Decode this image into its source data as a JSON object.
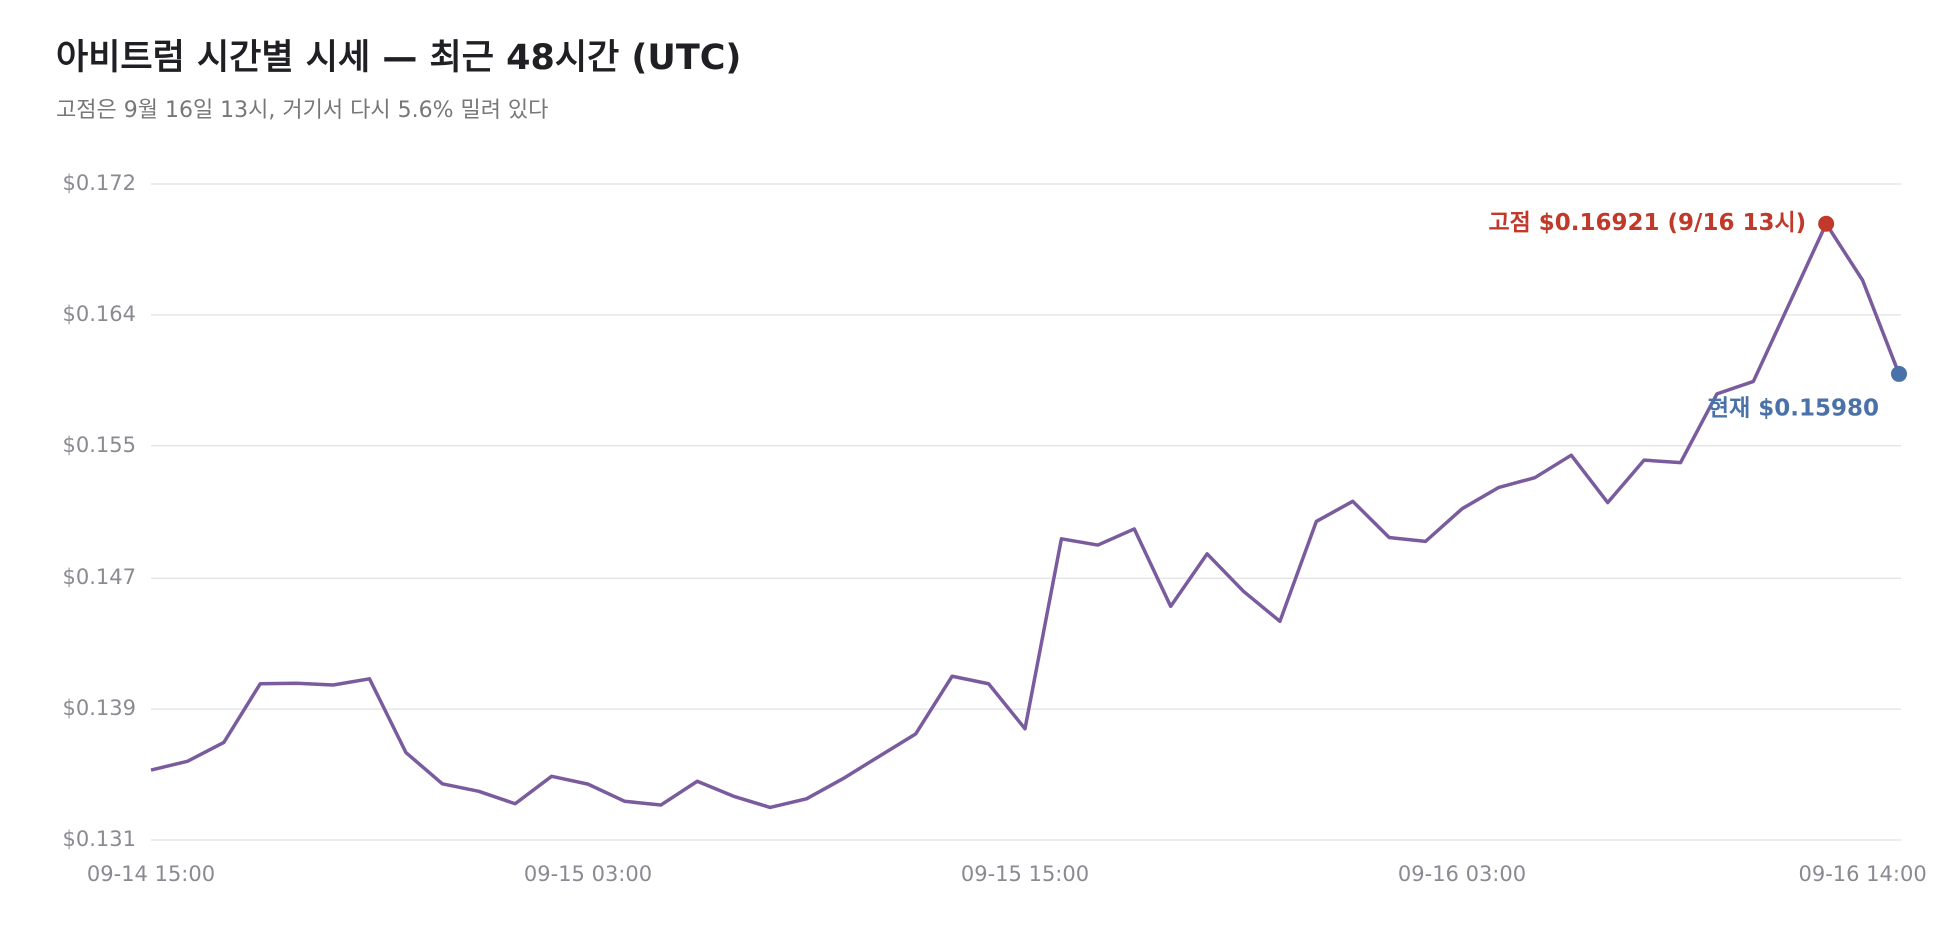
{
  "chart_data": {
    "type": "line",
    "title": "아비트럼 시간별 시세 — 최근 48시간 (UTC)",
    "subtitle": "고점은 9월 16일 13시, 거기서 다시 5.6% 밀려 있다",
    "categories": [
      "09-14 15:00",
      null,
      null,
      null,
      null,
      null,
      null,
      null,
      null,
      null,
      null,
      null,
      "09-15 03:00",
      null,
      null,
      null,
      null,
      null,
      null,
      null,
      null,
      null,
      null,
      null,
      "09-15 15:00",
      null,
      null,
      null,
      null,
      null,
      null,
      null,
      null,
      null,
      null,
      null,
      "09-16 03:00",
      null,
      null,
      null,
      null,
      null,
      null,
      null,
      null,
      null,
      null,
      "09-16 14:00",
      null
    ],
    "series": [
      {
        "color": "#7a5c9e",
        "values": [
          0.13498,
          0.13553,
          0.13671,
          0.14039,
          0.14042,
          0.14031,
          0.1407,
          0.13608,
          0.13412,
          0.13365,
          0.13287,
          0.13459,
          0.1341,
          0.13303,
          0.13279,
          0.13428,
          0.13334,
          0.13264,
          0.13318,
          0.13444,
          0.13585,
          0.13725,
          0.14086,
          0.14039,
          0.13757,
          0.14947,
          0.14908,
          0.15009,
          0.14524,
          0.14853,
          0.14618,
          0.1443,
          0.15056,
          0.15182,
          0.14955,
          0.14931,
          0.15135,
          0.15268,
          0.1533,
          0.15471,
          0.15174,
          0.1544,
          0.15424,
          0.15855,
          0.15933,
          0.16426,
          0.16921,
          0.16567,
          0.1598
        ]
      }
    ],
    "ylim": [
      0.1306,
      0.1717
    ],
    "yticks": [
      {
        "value": 0.1306,
        "label": "$0.131"
      },
      {
        "value": 0.1388,
        "label": "$0.139"
      },
      {
        "value": 0.147,
        "label": "$0.147"
      },
      {
        "value": 0.1553,
        "label": "$0.155"
      },
      {
        "value": 0.1635,
        "label": "$0.164"
      },
      {
        "value": 0.1717,
        "label": "$0.172"
      }
    ],
    "grid": true,
    "annotations": [
      {
        "text": "고점 $0.16921 (9/16 13시)",
        "color": "#c0392b"
      },
      {
        "text": "현재 $0.15980",
        "color": "#4a72a8"
      }
    ]
  }
}
